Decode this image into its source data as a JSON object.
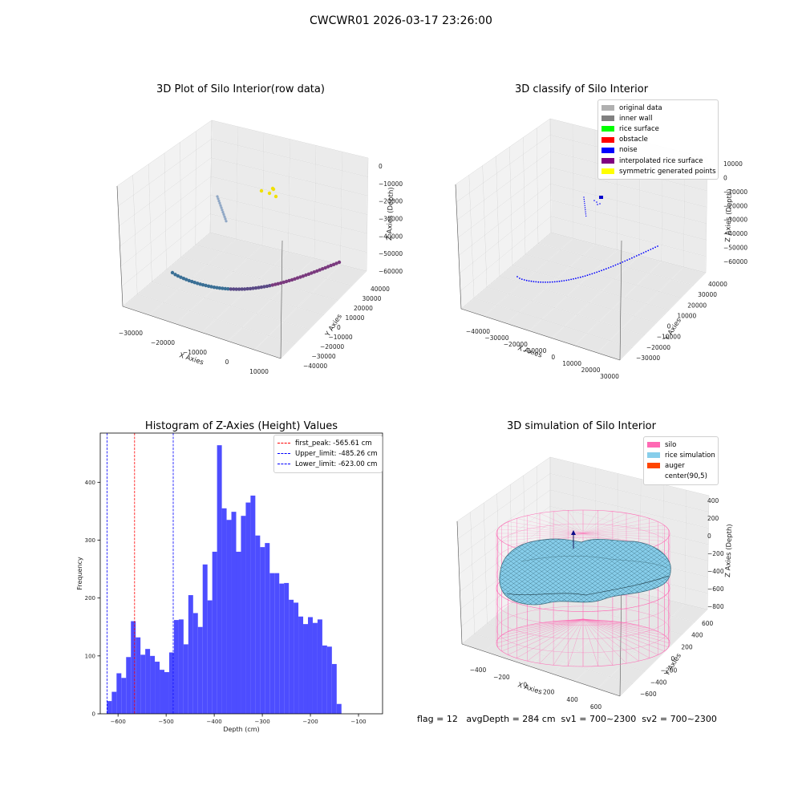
{
  "suptitle": "CWCWR01 2026-03-17 23:26:00",
  "footer": "flag = 12   avgDepth = 284 cm  sv1 = 700~2300  sv2 = 700~2300",
  "chart_data": [
    {
      "type": "scatter3d",
      "title": "3D Plot of Silo Interior(row data)",
      "xlabel": "X Axies",
      "ylabel": "Y Axies",
      "zlabel": "Z Axies (Depth)",
      "x_ticks": [
        "−30000",
        "−20000",
        "−10000",
        "0",
        "10000"
      ],
      "y_ticks": [
        "40000",
        "30000",
        "20000",
        "10000",
        "0",
        "−10000",
        "−20000",
        "−30000",
        "−40000"
      ],
      "z_ticks": [
        "0",
        "−10000",
        "−20000",
        "−30000",
        "−40000",
        "−50000",
        "−60000"
      ],
      "grid": true
    },
    {
      "type": "scatter3d",
      "title": "3D classify of Silo Interior",
      "xlabel": "X Axies",
      "ylabel": "Y Axies",
      "zlabel": "Z Axies (Depth)",
      "x_ticks": [
        "−40000",
        "−30000",
        "−20000",
        "−10000",
        "0",
        "10000",
        "20000",
        "30000"
      ],
      "y_ticks": [
        "40000",
        "30000",
        "20000",
        "10000",
        "0",
        "−10000",
        "−20000",
        "−30000"
      ],
      "z_ticks": [
        "10000",
        "0",
        "−10000",
        "−20000",
        "−30000",
        "−40000",
        "−50000",
        "−60000"
      ],
      "legend": [
        {
          "label": "original data",
          "color": "#b0b0b0"
        },
        {
          "label": "inner wall",
          "color": "#808080"
        },
        {
          "label": "rice surface",
          "color": "#00ff00"
        },
        {
          "label": "obstacle",
          "color": "#ff0000"
        },
        {
          "label": "noise",
          "color": "#0000ff"
        },
        {
          "label": "interpolated rice surface",
          "color": "#800080"
        },
        {
          "label": "symmetric generated points",
          "color": "#ffff00"
        }
      ],
      "legend_position": "top-right",
      "grid": true
    },
    {
      "type": "bar",
      "title": "Histogram of Z-Axies (Height) Values",
      "xlabel": "Depth (cm)",
      "ylabel": "Frequency",
      "xlim": [
        -637,
        -50
      ],
      "ylim": [
        0,
        485
      ],
      "x_ticks": [
        -600,
        -500,
        -400,
        -300,
        -200,
        -100
      ],
      "x_tick_labels": [
        "−600",
        "−500",
        "−400",
        "−300",
        "−200",
        "−100"
      ],
      "y_ticks": [
        0,
        100,
        200,
        300,
        400
      ],
      "bin_start": -623.0,
      "bin_width": 9.95,
      "values": [
        22,
        38,
        70,
        62,
        98,
        160,
        132,
        102,
        112,
        100,
        90,
        76,
        72,
        106,
        162,
        163,
        120,
        205,
        174,
        150,
        258,
        196,
        280,
        464,
        355,
        335,
        349,
        280,
        342,
        365,
        377,
        308,
        288,
        295,
        243,
        243,
        225,
        226,
        197,
        192,
        168,
        155,
        167,
        157,
        163,
        118,
        116,
        86,
        17
      ],
      "bar_color": "#4d4dff",
      "vlines": [
        {
          "label": "first_peak: -565.61 cm",
          "x": -565.61,
          "color": "#ff0000"
        },
        {
          "label": "Upper_limit: -485.26 cm",
          "x": -485.26,
          "color": "#0000ff"
        },
        {
          "label": "Lower_limit: -623.00 cm",
          "x": -623.0,
          "color": "#0000ff"
        }
      ],
      "legend_position": "top-right"
    },
    {
      "type": "surface3d",
      "title": "3D simulation of Silo Interior",
      "xlabel": "X Axies",
      "ylabel": "Y Axies",
      "zlabel": "Z Axies (Depth)",
      "x_ticks": [
        "−400",
        "−200",
        "0",
        "200",
        "400",
        "600"
      ],
      "y_ticks": [
        "600",
        "400",
        "200",
        "0",
        "−200",
        "−400",
        "−600"
      ],
      "z_ticks": [
        "400",
        "200",
        "0",
        "−200",
        "−400",
        "−600",
        "−800"
      ],
      "legend": [
        {
          "label": "silo",
          "color": "#ff69b4"
        },
        {
          "label": "rice simulation",
          "color": "#87ceeb"
        },
        {
          "label": "auger",
          "color": "#ff4500"
        },
        {
          "label": "center(90,5)",
          "color": ""
        }
      ],
      "legend_position": "top-right",
      "grid": true
    }
  ]
}
